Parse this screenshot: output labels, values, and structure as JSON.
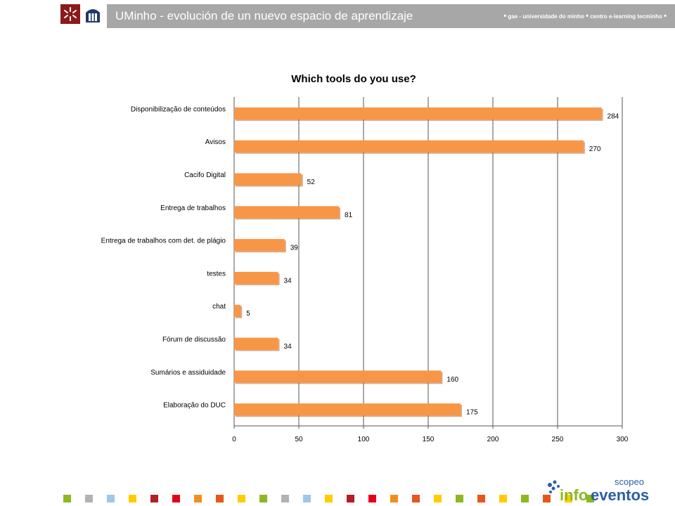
{
  "header": {
    "title": "UMinho - evolución de un nuevo espacio de aprendizaje",
    "subtitle_parts": [
      "gae - universidade do minho",
      "centro e-learning tecminho"
    ]
  },
  "brand": {
    "scopeo": "scopeo",
    "info": "info",
    "eventos": "eventos"
  },
  "colors": {
    "header_bg": "#a7a7a7",
    "bar": "#f79646",
    "bar_dark": "#c2601f",
    "uminho_red": "#8b1a1a",
    "squares": [
      "#8db821",
      "#b2b2b2",
      "#9ec7ea",
      "#ffcc00",
      "#b21f24",
      "#e2001a",
      "#f28e1c",
      "#e5571c",
      "#ffcc00",
      "#8db821",
      "#b2b2b2",
      "#9ec7ea",
      "#ffcc00",
      "#b21f24",
      "#e2001a",
      "#f28e1c",
      "#e5571c",
      "#ffcc00",
      "#8db821",
      "#e5571c",
      "#ffcc00",
      "#8db821",
      "#e5571c",
      "#ffcc00",
      "#8db821"
    ]
  },
  "chart_data": {
    "type": "bar",
    "orientation": "horizontal",
    "title": "Which tools do you use?",
    "categories": [
      "Disponibilização de conteúdos",
      "Avisos",
      "Cacifo Digital",
      "Entrega de trabalhos",
      "Entrega de trabalhos com det. de plágio",
      "testes",
      "chat",
      "Fórum de discussão",
      "Sumários e assiduidade",
      "Elaboração do DUC"
    ],
    "values": [
      284,
      270,
      52,
      81,
      39,
      34,
      5,
      34,
      160,
      175
    ],
    "xlim": [
      0,
      300
    ],
    "xticks": [
      0,
      50,
      100,
      150,
      200,
      250,
      300
    ],
    "grid": true,
    "legend": "none"
  }
}
